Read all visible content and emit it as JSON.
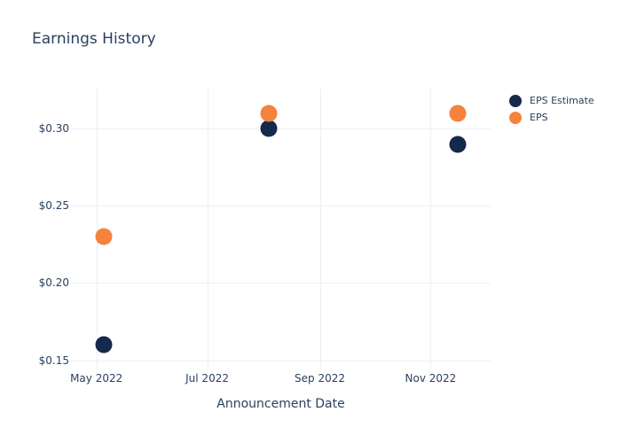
{
  "title": "Earnings History",
  "colors": {
    "text": "#2a3f5f",
    "grid": "#E9EEF6",
    "background": "#ffffff",
    "eps_estimate": "#14294B",
    "eps": "#F5823D"
  },
  "legend": {
    "items": [
      {
        "label": "EPS Estimate",
        "color": "#14294B",
        "marker_icon": "circle-marker-icon"
      },
      {
        "label": "EPS",
        "color": "#F5823D",
        "marker_icon": "circle-marker-icon"
      }
    ]
  },
  "chart_data": {
    "type": "scatter",
    "title": "Earnings History",
    "xlabel": "Announcement Date",
    "ylabel": "",
    "x": [
      "2022-05-05",
      "2022-08-04",
      "2022-11-16"
    ],
    "series": [
      {
        "name": "EPS Estimate",
        "color": "#14294B",
        "values": [
          0.16,
          0.3,
          0.29
        ]
      },
      {
        "name": "EPS",
        "color": "#F5823D",
        "values": [
          0.23,
          0.31,
          0.31
        ]
      }
    ],
    "x_ticks": [
      {
        "date": "2022-05-01",
        "label": "May 2022"
      },
      {
        "date": "2022-07-01",
        "label": "Jul 2022"
      },
      {
        "date": "2022-09-01",
        "label": "Sep 2022"
      },
      {
        "date": "2022-11-01",
        "label": "Nov 2022"
      }
    ],
    "y_ticks": [
      {
        "value": 0.15,
        "label": "$0.15"
      },
      {
        "value": 0.2,
        "label": "$0.20"
      },
      {
        "value": 0.25,
        "label": "$0.25"
      },
      {
        "value": 0.3,
        "label": "$0.30"
      }
    ],
    "xlim": [
      "2022-04-17",
      "2022-12-04"
    ],
    "ylim": [
      0.144,
      0.326
    ],
    "grid": true,
    "legend_position": "right-outside-top",
    "marker_size": 19
  }
}
